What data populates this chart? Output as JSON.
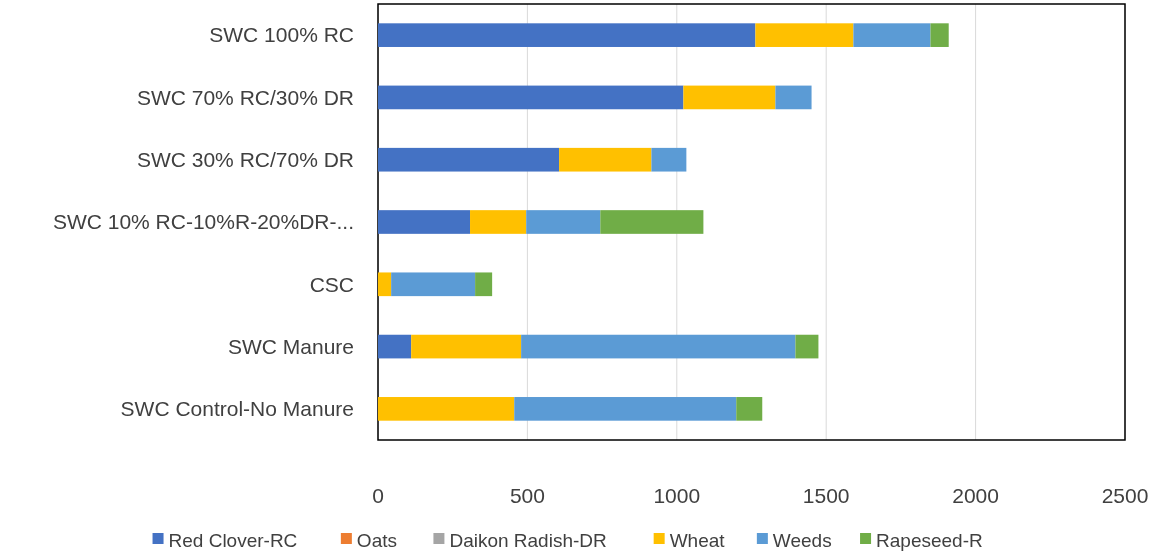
{
  "chart_data": {
    "type": "bar",
    "orientation": "horizontal",
    "stacked": true,
    "categories": [
      "SWC 100% RC",
      "SWC 70% RC/30% DR",
      "SWC 30% RC/70% DR",
      "SWC 10% RC-10%R-20%DR-...",
      "CSC",
      "SWC Manure",
      "SWC Control-No Manure"
    ],
    "series": [
      {
        "name": "Red Clover-RC",
        "color": "#4472c4",
        "values": [
          1263,
          1022,
          606,
          308,
          0,
          111,
          0
        ]
      },
      {
        "name": "Oats",
        "color": "#ed7d31",
        "values": [
          0,
          0,
          0,
          0,
          0,
          0,
          0
        ]
      },
      {
        "name": "Daikon Radish-DR",
        "color": "#a5a5a5",
        "values": [
          0,
          0,
          0,
          0,
          0,
          0,
          0
        ]
      },
      {
        "name": "Wheat",
        "color": "#ffc000",
        "values": [
          328,
          308,
          309,
          188,
          44,
          368,
          456
        ]
      },
      {
        "name": "Weeds",
        "color": "#5b9bd5",
        "values": [
          258,
          121,
          117,
          248,
          281,
          918,
          743
        ]
      },
      {
        "name": "Rapeseed-R",
        "color": "#70ad47",
        "values": [
          61,
          0,
          0,
          345,
          57,
          77,
          87
        ]
      }
    ],
    "xlim": [
      0,
      2500
    ],
    "xticks": [
      0,
      500,
      1000,
      1500,
      2000,
      2500
    ],
    "grid": "x",
    "legend": "bottom"
  }
}
